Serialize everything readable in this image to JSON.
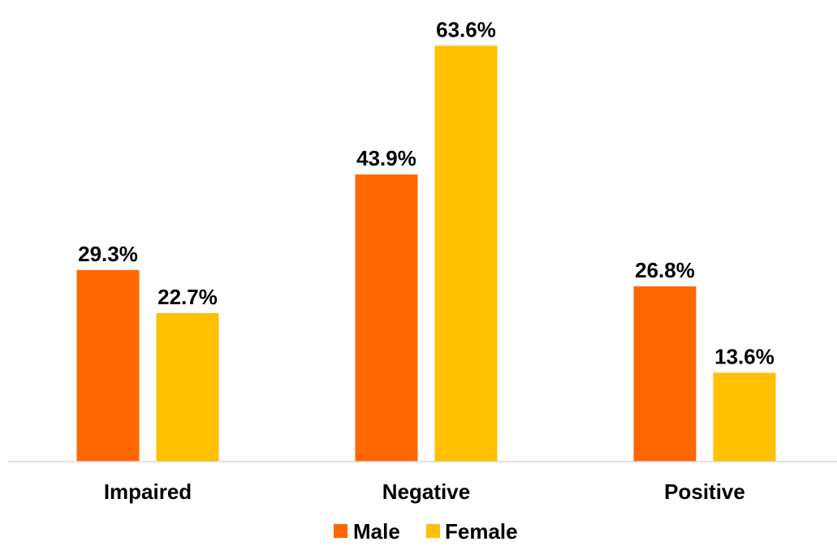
{
  "chart_data": {
    "type": "bar",
    "categories": [
      "Impaired",
      "Negative",
      "Positive"
    ],
    "series": [
      {
        "name": "Male",
        "color": "#ff6600",
        "values": [
          29.3,
          43.9,
          26.8
        ],
        "labels": [
          "29.3%",
          "43.9%",
          "26.8%"
        ]
      },
      {
        "name": "Female",
        "color": "#ffc000",
        "values": [
          22.7,
          63.6,
          13.6
        ],
        "labels": [
          "22.7%",
          "63.6%",
          "13.6%"
        ]
      }
    ],
    "ylim": [
      0,
      65
    ],
    "grid": false,
    "legend_position": "bottom",
    "axis_line_color": "#d9d9d9"
  }
}
